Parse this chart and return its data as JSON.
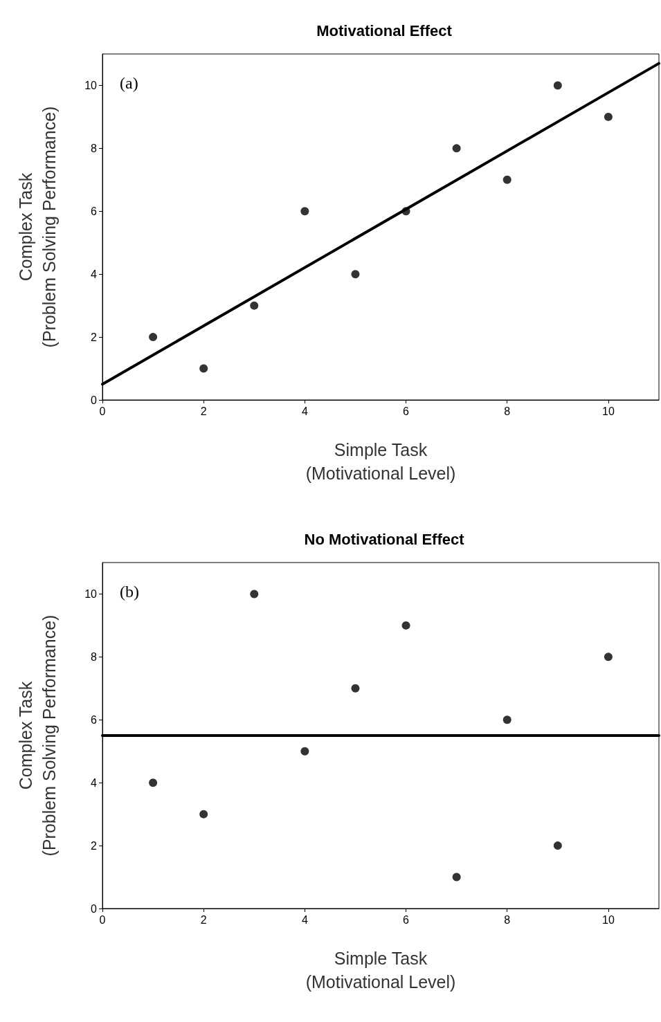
{
  "chart_data": [
    {
      "type": "scatter",
      "title": "Motivational Effect",
      "xlabel": "Simple Task\n(Motivational Level)",
      "ylabel": "Complex Task\n(Problem Solving Performance)",
      "annotations": [
        "(a)"
      ],
      "xlim": [
        0,
        11
      ],
      "ylim": [
        0,
        11
      ],
      "xticks": [
        0,
        2,
        4,
        6,
        8,
        10
      ],
      "yticks": [
        0,
        2,
        4,
        6,
        8,
        10
      ],
      "grid": false,
      "series": [
        {
          "color": "#000000",
          "marker": "circle",
          "x": [
            1,
            2,
            3,
            4,
            5,
            6,
            7,
            8,
            9,
            10
          ],
          "values": [
            2,
            1,
            3,
            6,
            4,
            6,
            8,
            7,
            10,
            9
          ]
        },
        {
          "type": "line",
          "color": "#000000",
          "marker": "none",
          "line_style": "solid",
          "x": [
            0,
            11
          ],
          "values": [
            0.5,
            10.7
          ]
        }
      ]
    },
    {
      "type": "scatter",
      "title": "No Motivational Effect",
      "xlabel": "Simple Task\n(Motivational Level)",
      "ylabel": "Complex Task\n(Problem Solving Performance)",
      "annotations": [
        "(b)"
      ],
      "xlim": [
        0,
        11
      ],
      "ylim": [
        0,
        11
      ],
      "xticks": [
        0,
        2,
        4,
        6,
        8,
        10
      ],
      "yticks": [
        0,
        2,
        4,
        6,
        8,
        10
      ],
      "grid": false,
      "series": [
        {
          "color": "#000000",
          "marker": "circle",
          "x": [
            1,
            2,
            3,
            4,
            5,
            6,
            7,
            8,
            9,
            10
          ],
          "values": [
            4,
            3,
            10,
            5,
            7,
            9,
            1,
            6,
            2,
            8
          ]
        },
        {
          "type": "line",
          "color": "#000000",
          "marker": "none",
          "line_style": "solid",
          "x": [
            0,
            11
          ],
          "values": [
            5.5,
            5.5
          ]
        }
      ]
    }
  ]
}
